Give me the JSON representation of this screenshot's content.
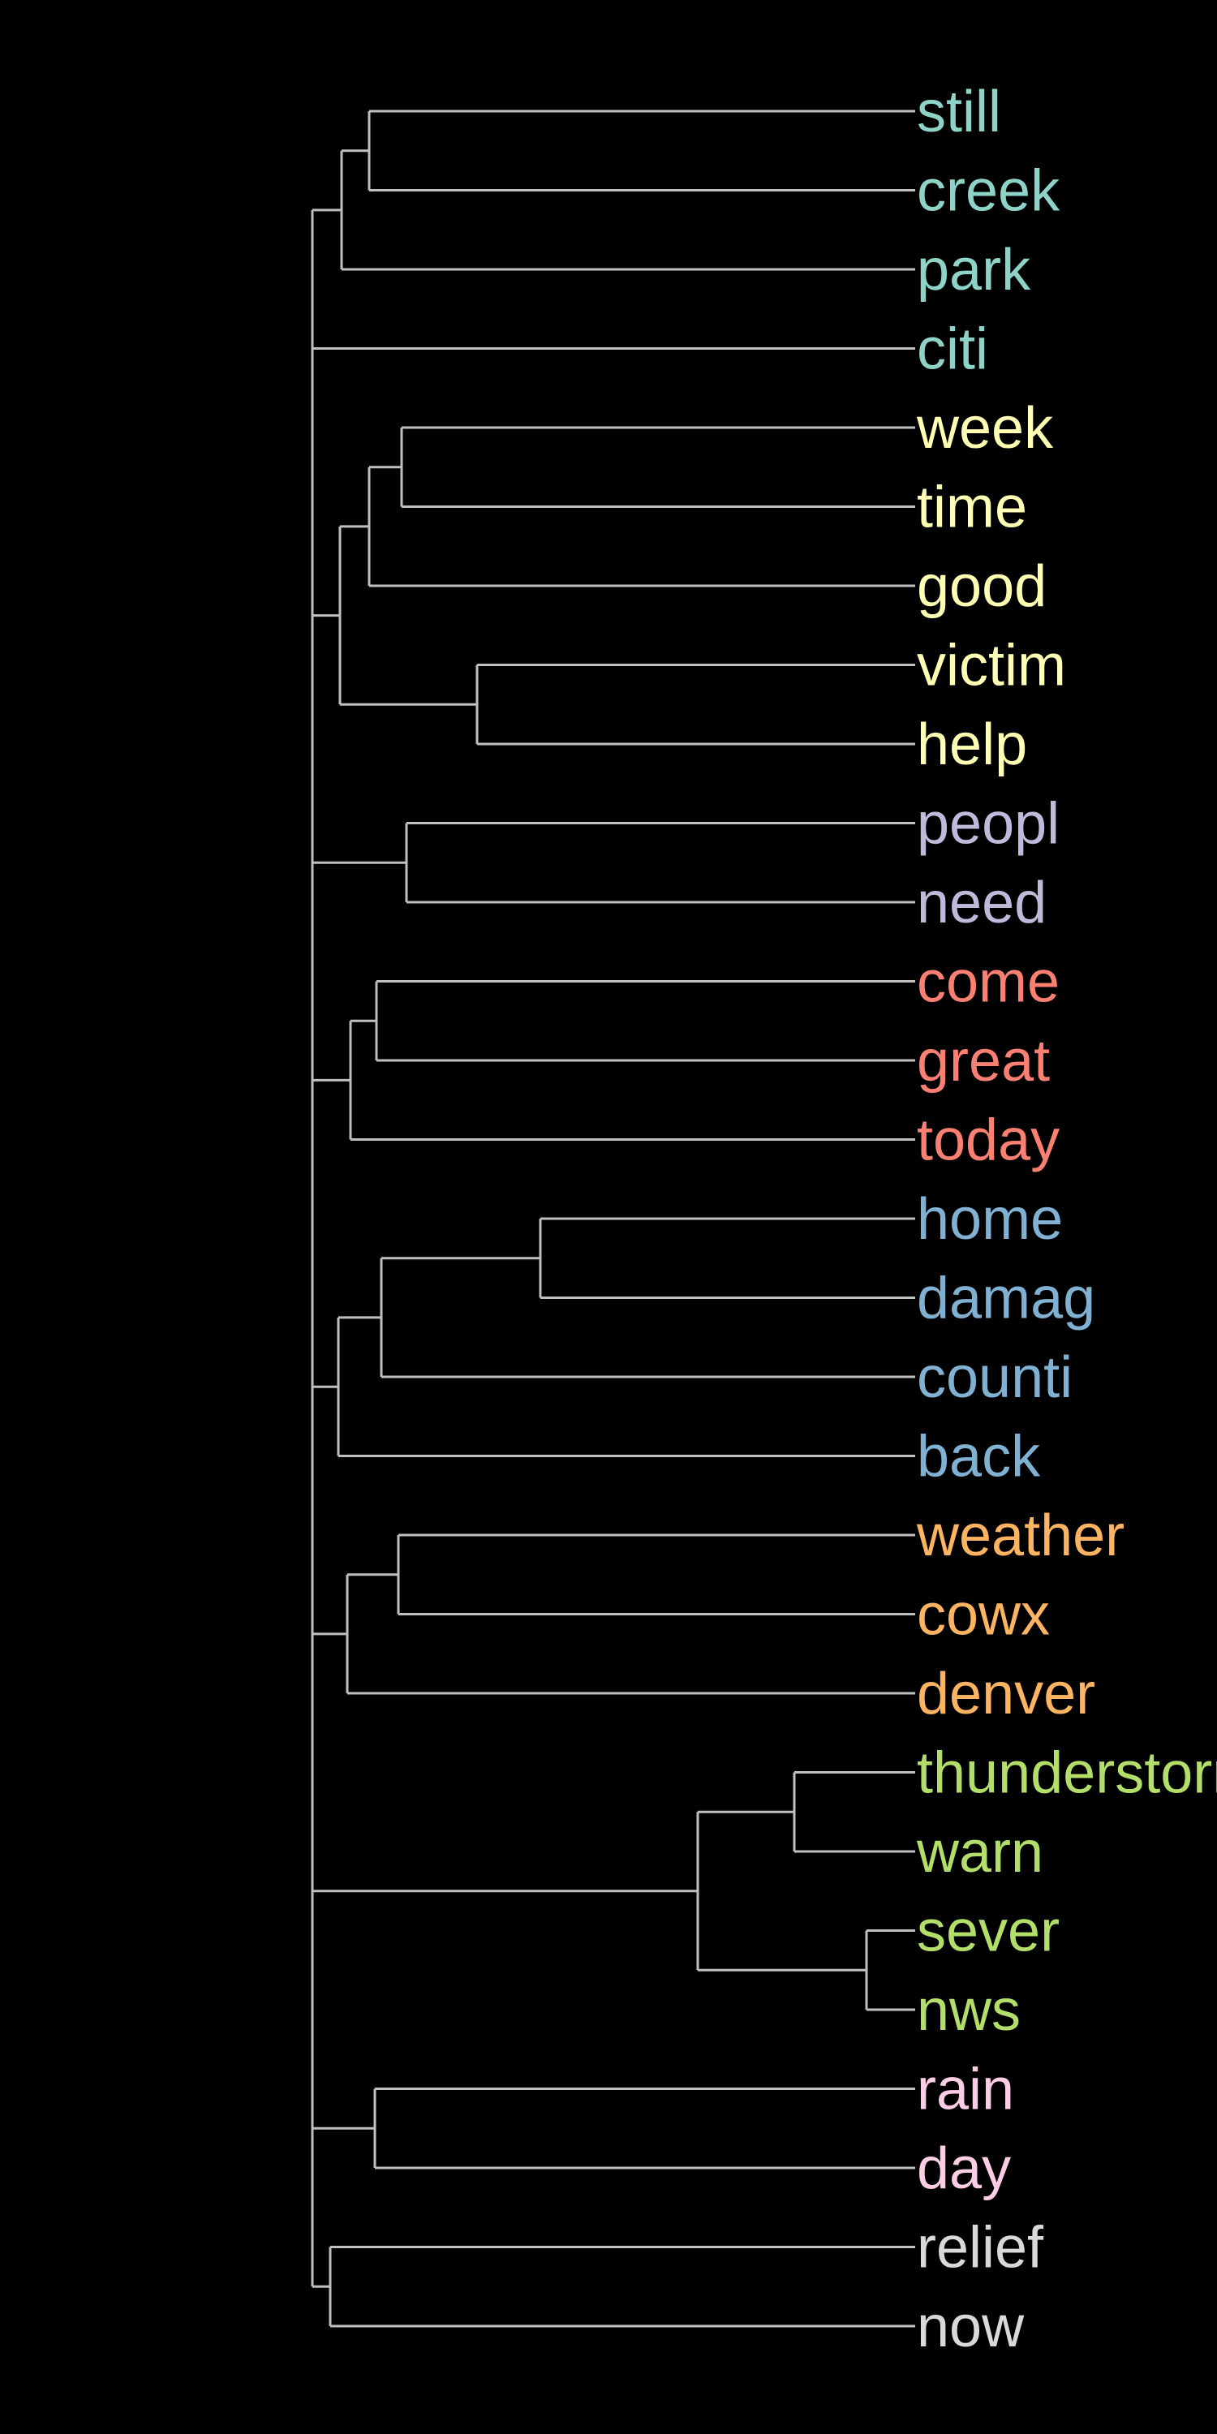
{
  "leaves": [
    {
      "label": "still",
      "color": "#8dd3c7"
    },
    {
      "label": "creek",
      "color": "#8dd3c7"
    },
    {
      "label": "park",
      "color": "#8dd3c7"
    },
    {
      "label": "citi",
      "color": "#8dd3c7"
    },
    {
      "label": "week",
      "color": "#ffffb3"
    },
    {
      "label": "time",
      "color": "#ffffb3"
    },
    {
      "label": "good",
      "color": "#ffffb3"
    },
    {
      "label": "victim",
      "color": "#ffffb3"
    },
    {
      "label": "help",
      "color": "#ffffb3"
    },
    {
      "label": "peopl",
      "color": "#bebada"
    },
    {
      "label": "need",
      "color": "#bebada"
    },
    {
      "label": "come",
      "color": "#fb8072"
    },
    {
      "label": "great",
      "color": "#fb8072"
    },
    {
      "label": "today",
      "color": "#fb8072"
    },
    {
      "label": "home",
      "color": "#80b1d3"
    },
    {
      "label": "damag",
      "color": "#80b1d3"
    },
    {
      "label": "counti",
      "color": "#80b1d3"
    },
    {
      "label": "back",
      "color": "#80b1d3"
    },
    {
      "label": "weather",
      "color": "#fdb462"
    },
    {
      "label": "cowx",
      "color": "#fdb462"
    },
    {
      "label": "denver",
      "color": "#fdb462"
    },
    {
      "label": "thunderstorm",
      "color": "#b3de69"
    },
    {
      "label": "warn",
      "color": "#b3de69"
    },
    {
      "label": "sever",
      "color": "#b3de69"
    },
    {
      "label": "nws",
      "color": "#b3de69"
    },
    {
      "label": "rain",
      "color": "#fccde5"
    },
    {
      "label": "day",
      "color": "#fccde5"
    },
    {
      "label": "relief",
      "color": "#d9d9d9"
    },
    {
      "label": "now",
      "color": "#d9d9d9"
    }
  ],
  "link_color": "#bfbfbf",
  "background": "#000000"
}
